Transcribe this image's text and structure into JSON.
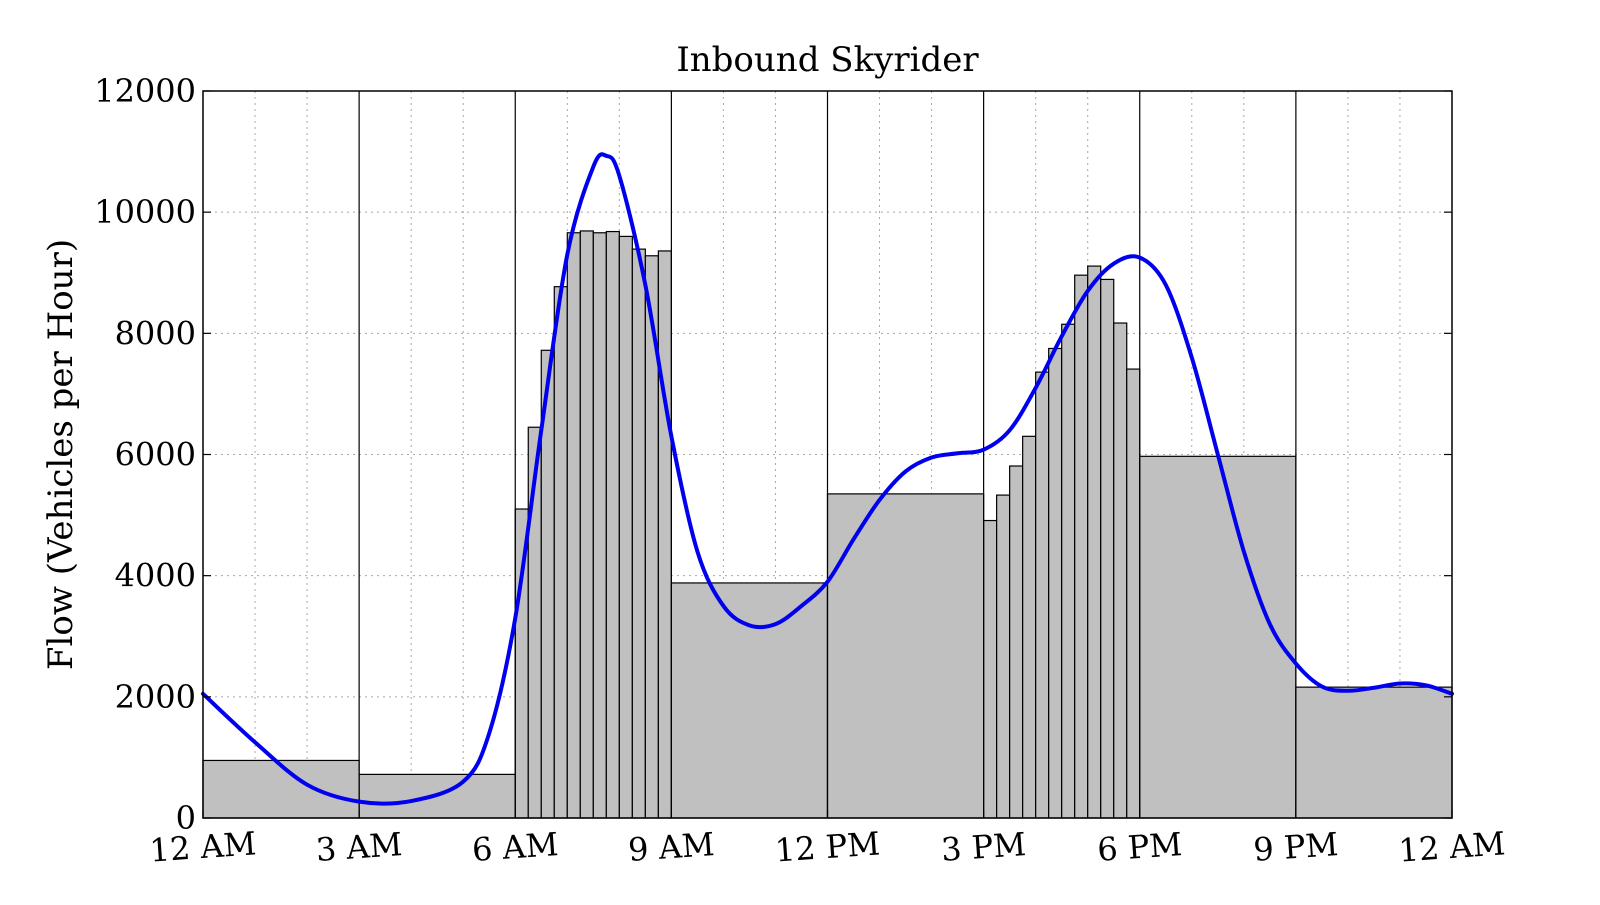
{
  "chart_data": {
    "type": "bar",
    "title": "Inbound Skyrider",
    "xlabel": "",
    "ylabel": "Flow (Vehicles per Hour)",
    "ylim": [
      0,
      12000
    ],
    "xlim_hours": [
      0,
      24
    ],
    "grid": true,
    "y_ticks": [
      0,
      2000,
      4000,
      6000,
      8000,
      10000,
      12000
    ],
    "x_tick_hours": [
      0,
      3,
      6,
      9,
      12,
      15,
      18,
      21,
      24
    ],
    "x_tick_labels": [
      "12 AM",
      "3 AM",
      "6 AM",
      "9 AM",
      "12 PM",
      "3 PM",
      "6 PM",
      "9 PM",
      "12 AM"
    ],
    "x_minor_grid_hours": [
      1,
      2,
      4,
      5,
      7,
      8,
      10,
      11,
      13,
      14,
      16,
      17,
      19,
      20,
      22,
      23
    ],
    "period_boundaries_hours": [
      3,
      6,
      9,
      12,
      15,
      18,
      21
    ],
    "bar_color": "#c0c0c0",
    "curve_color": "#0000ee",
    "bars": [
      {
        "start_hour": 0,
        "end_hour": 3,
        "value": 950
      },
      {
        "start_hour": 3,
        "end_hour": 6,
        "value": 720
      },
      {
        "start_hour": 6.0,
        "end_hour": 6.25,
        "value": 5100
      },
      {
        "start_hour": 6.25,
        "end_hour": 6.5,
        "value": 6450
      },
      {
        "start_hour": 6.5,
        "end_hour": 6.75,
        "value": 7720
      },
      {
        "start_hour": 6.75,
        "end_hour": 7.0,
        "value": 8770
      },
      {
        "start_hour": 7.0,
        "end_hour": 7.25,
        "value": 9660
      },
      {
        "start_hour": 7.25,
        "end_hour": 7.5,
        "value": 9690
      },
      {
        "start_hour": 7.5,
        "end_hour": 7.75,
        "value": 9660
      },
      {
        "start_hour": 7.75,
        "end_hour": 8.0,
        "value": 9680
      },
      {
        "start_hour": 8.0,
        "end_hour": 8.25,
        "value": 9600
      },
      {
        "start_hour": 8.25,
        "end_hour": 8.5,
        "value": 9390
      },
      {
        "start_hour": 8.5,
        "end_hour": 8.75,
        "value": 9280
      },
      {
        "start_hour": 8.75,
        "end_hour": 9.0,
        "value": 9360
      },
      {
        "start_hour": 9,
        "end_hour": 12,
        "value": 3880
      },
      {
        "start_hour": 12,
        "end_hour": 15,
        "value": 5350
      },
      {
        "start_hour": 15.0,
        "end_hour": 15.25,
        "value": 4910
      },
      {
        "start_hour": 15.25,
        "end_hour": 15.5,
        "value": 5330
      },
      {
        "start_hour": 15.5,
        "end_hour": 15.75,
        "value": 5810
      },
      {
        "start_hour": 15.75,
        "end_hour": 16.0,
        "value": 6300
      },
      {
        "start_hour": 16.0,
        "end_hour": 16.25,
        "value": 7360
      },
      {
        "start_hour": 16.25,
        "end_hour": 16.5,
        "value": 7750
      },
      {
        "start_hour": 16.5,
        "end_hour": 16.75,
        "value": 8150
      },
      {
        "start_hour": 16.75,
        "end_hour": 17.0,
        "value": 8960
      },
      {
        "start_hour": 17.0,
        "end_hour": 17.25,
        "value": 9110
      },
      {
        "start_hour": 17.25,
        "end_hour": 17.5,
        "value": 8890
      },
      {
        "start_hour": 17.5,
        "end_hour": 17.75,
        "value": 8170
      },
      {
        "start_hour": 17.75,
        "end_hour": 18.0,
        "value": 7410
      },
      {
        "start_hour": 18,
        "end_hour": 21,
        "value": 5970
      },
      {
        "start_hour": 21,
        "end_hour": 24,
        "value": 2160
      }
    ],
    "curve": {
      "x_hours": [
        0,
        1,
        2,
        3,
        4,
        5,
        5.5,
        6,
        6.5,
        7,
        7.5,
        7.75,
        8,
        8.5,
        9,
        9.5,
        10,
        10.5,
        11,
        11.5,
        12,
        12.5,
        13,
        13.5,
        14,
        14.5,
        15,
        15.5,
        16,
        16.5,
        17,
        17.5,
        18,
        18.5,
        19,
        19.5,
        20,
        20.5,
        21,
        21.5,
        22,
        22.5,
        23,
        23.5,
        24
      ],
      "y_values": [
        2050,
        1250,
        550,
        270,
        280,
        600,
        1400,
        3300,
        6400,
        9300,
        10750,
        10930,
        10600,
        8800,
        6300,
        4400,
        3500,
        3180,
        3200,
        3500,
        3900,
        4600,
        5250,
        5720,
        5950,
        6020,
        6080,
        6400,
        7100,
        7950,
        8700,
        9150,
        9250,
        8800,
        7600,
        6000,
        4400,
        3200,
        2550,
        2170,
        2100,
        2150,
        2220,
        2190,
        2050
      ]
    }
  }
}
